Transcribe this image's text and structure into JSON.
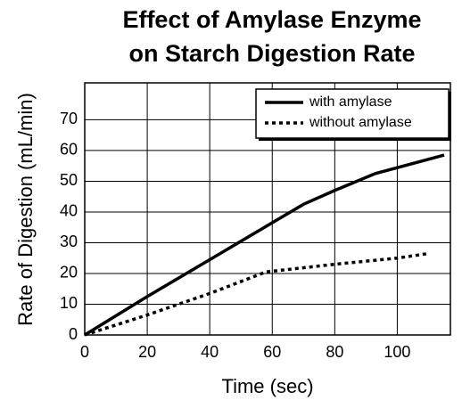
{
  "chart_data": {
    "type": "line",
    "title": [
      "Effect of Amylase Enzyme",
      "on Starch Digestion Rate"
    ],
    "x_label": "Time (sec)",
    "y_label": "Rate of Digestion (mL/min)",
    "xlim": [
      0,
      117
    ],
    "xticks": [
      0,
      20,
      40,
      60,
      80,
      100
    ],
    "ylim": [
      0,
      82
    ],
    "yticks": [
      0,
      10,
      20,
      30,
      40,
      50,
      60,
      70
    ],
    "grid": true,
    "legend": "upper right",
    "series": [
      {
        "name": "with amylase",
        "color": "#000000",
        "style": "solid",
        "x": [
          0,
          20,
          40,
          60,
          70,
          80,
          93,
          115
        ],
        "values": [
          0,
          12.5,
          24.5,
          36.5,
          42.5,
          47,
          52.5,
          58.5
        ]
      },
      {
        "name": "without amylase",
        "color": "#000000",
        "style": "dotted",
        "x": [
          0,
          20,
          40,
          58,
          80,
          100,
          110
        ],
        "values": [
          0,
          6.5,
          13.5,
          20.5,
          23,
          25,
          26.5
        ]
      }
    ]
  }
}
